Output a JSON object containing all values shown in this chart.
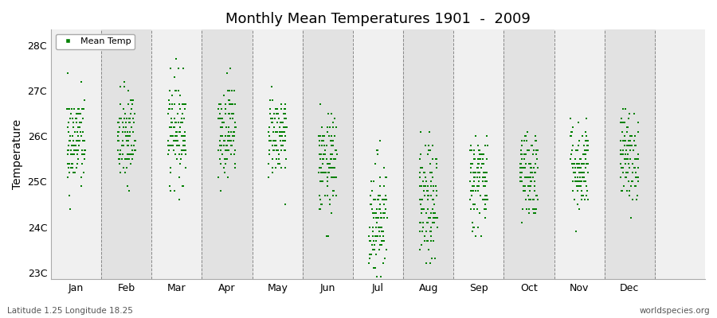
{
  "title": "Monthly Mean Temperatures 1901  -  2009",
  "ylabel": "Temperature",
  "xlabel_labels": [
    "Jan",
    "Feb",
    "Mar",
    "Apr",
    "May",
    "Jun",
    "Jul",
    "Aug",
    "Sep",
    "Oct",
    "Nov",
    "Dec"
  ],
  "ytick_labels": [
    "23C",
    "24C",
    "25C",
    "26C",
    "27C",
    "28C"
  ],
  "ytick_values": [
    23,
    24,
    25,
    26,
    27,
    28
  ],
  "ylim": [
    22.85,
    28.35
  ],
  "xlim": [
    -0.5,
    12.5
  ],
  "legend_label": "Mean Temp",
  "marker_color": "#008000",
  "bg_light": "#f0f0f0",
  "bg_dark": "#e2e2e2",
  "footer_left": "Latitude 1.25 Longitude 18.25",
  "footer_right": "worldspecies.org",
  "random_seed": 42,
  "month_means": [
    25.85,
    25.95,
    26.15,
    26.15,
    26.05,
    25.35,
    24.2,
    24.45,
    25.05,
    25.2,
    25.35,
    25.55
  ],
  "month_stds": [
    0.55,
    0.55,
    0.55,
    0.5,
    0.45,
    0.55,
    0.7,
    0.65,
    0.55,
    0.5,
    0.5,
    0.5
  ],
  "n_years": 109
}
